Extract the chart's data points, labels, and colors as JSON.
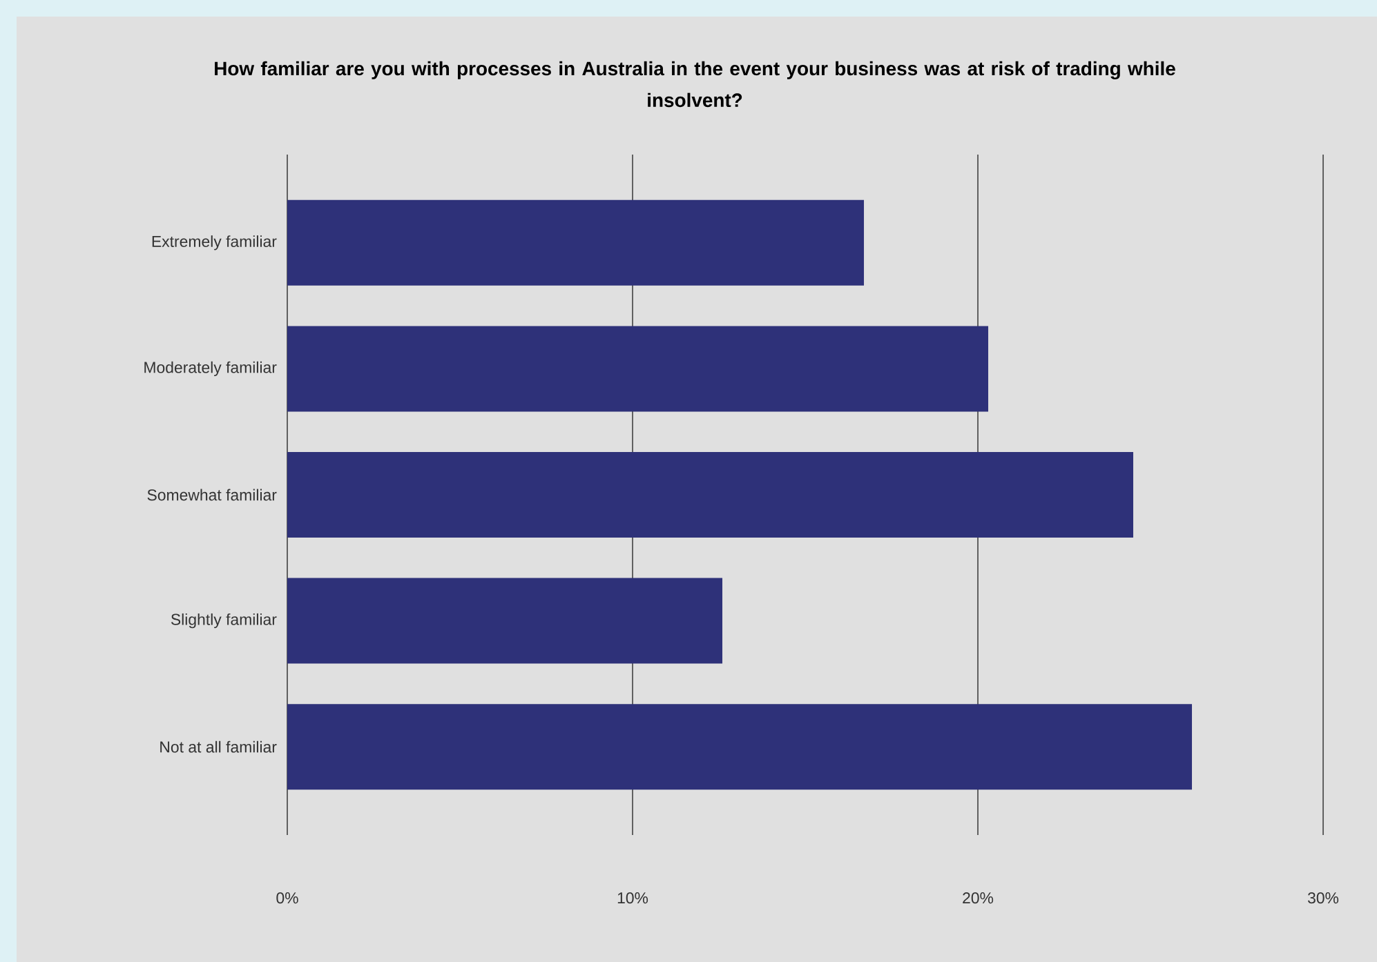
{
  "chart_data": {
    "type": "bar",
    "orientation": "horizontal",
    "title": "How familiar are you with processes in Australia in the event your business was at risk of trading while insolvent?",
    "categories": [
      "Extremely familiar",
      "Moderately familiar",
      "Somewhat familiar",
      "Slightly familiar",
      "Not at all familiar"
    ],
    "values": [
      16.7,
      20.3,
      24.5,
      12.6,
      26.2
    ],
    "color": "#2e3179",
    "xlim": [
      0,
      30
    ],
    "xticks": [
      {
        "value": 0,
        "label": "0%"
      },
      {
        "value": 10,
        "label": "10%"
      },
      {
        "value": 20,
        "label": "20%"
      },
      {
        "value": 30,
        "label": "30%"
      }
    ],
    "grid": "x"
  }
}
